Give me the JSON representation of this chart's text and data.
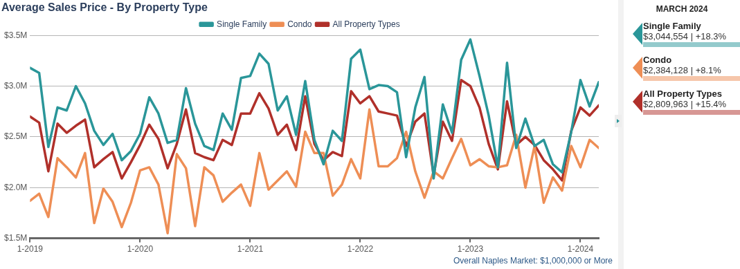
{
  "chart_data": {
    "type": "line",
    "title": "Average Sales Price - By Property Type",
    "x": [
      "2019-01",
      "2019-02",
      "2019-03",
      "2019-04",
      "2019-05",
      "2019-06",
      "2019-07",
      "2019-08",
      "2019-09",
      "2019-10",
      "2019-11",
      "2019-12",
      "2020-01",
      "2020-02",
      "2020-03",
      "2020-04",
      "2020-05",
      "2020-06",
      "2020-07",
      "2020-08",
      "2020-09",
      "2020-10",
      "2020-11",
      "2020-12",
      "2021-01",
      "2021-02",
      "2021-03",
      "2021-04",
      "2021-05",
      "2021-06",
      "2021-07",
      "2021-08",
      "2021-09",
      "2021-10",
      "2021-11",
      "2021-12",
      "2022-01",
      "2022-02",
      "2022-03",
      "2022-04",
      "2022-05",
      "2022-06",
      "2022-07",
      "2022-08",
      "2022-09",
      "2022-10",
      "2022-11",
      "2022-12",
      "2023-01",
      "2023-02",
      "2023-03",
      "2023-04",
      "2023-05",
      "2023-06",
      "2023-07",
      "2023-08",
      "2023-09",
      "2023-10",
      "2023-11",
      "2023-12",
      "2024-01",
      "2024-02",
      "2024-03"
    ],
    "series": [
      {
        "name": "Single Family",
        "color": "#2a9699",
        "values": [
          3.18,
          3.13,
          2.4,
          2.79,
          2.76,
          3.0,
          2.83,
          2.56,
          2.42,
          2.53,
          2.27,
          2.36,
          2.53,
          2.89,
          2.73,
          2.44,
          2.47,
          2.98,
          2.63,
          2.41,
          2.37,
          2.73,
          2.57,
          3.08,
          3.1,
          3.32,
          3.22,
          2.76,
          2.9,
          2.52,
          3.05,
          2.47,
          2.23,
          2.56,
          2.46,
          3.27,
          3.36,
          2.97,
          3.01,
          3.0,
          2.94,
          2.3,
          2.79,
          3.09,
          2.09,
          2.82,
          2.54,
          3.26,
          3.46,
          3.1,
          2.71,
          2.2,
          3.23,
          2.39,
          2.68,
          2.41,
          2.47,
          2.23,
          2.15,
          2.55,
          3.06,
          2.8,
          3.04
        ]
      },
      {
        "name": "Condo",
        "color": "#ee8e55",
        "values": [
          1.87,
          1.94,
          1.71,
          2.29,
          2.2,
          2.1,
          2.34,
          1.65,
          1.99,
          1.86,
          1.61,
          1.85,
          2.17,
          2.2,
          2.03,
          1.55,
          2.33,
          2.19,
          1.62,
          2.2,
          2.12,
          1.86,
          1.95,
          2.03,
          1.82,
          2.34,
          1.98,
          2.07,
          2.16,
          2.01,
          2.55,
          2.34,
          2.34,
          1.92,
          2.03,
          2.28,
          2.09,
          2.77,
          2.21,
          2.21,
          2.29,
          2.55,
          2.16,
          1.9,
          2.16,
          2.09,
          2.29,
          2.48,
          2.22,
          2.28,
          2.21,
          2.2,
          2.22,
          2.52,
          2.0,
          2.41,
          1.85,
          2.1,
          1.97,
          2.41,
          2.2,
          2.47,
          2.39
        ]
      },
      {
        "name": "All Property Types",
        "color": "#b0302a",
        "values": [
          2.7,
          2.64,
          2.16,
          2.63,
          2.54,
          2.61,
          2.67,
          2.2,
          2.28,
          2.35,
          2.09,
          2.25,
          2.42,
          2.62,
          2.48,
          2.19,
          2.43,
          2.77,
          2.34,
          2.3,
          2.27,
          2.47,
          2.42,
          2.73,
          2.73,
          2.93,
          2.78,
          2.52,
          2.62,
          2.37,
          2.9,
          2.43,
          2.27,
          2.35,
          2.31,
          2.95,
          2.83,
          2.9,
          2.75,
          2.73,
          2.71,
          2.41,
          2.65,
          2.73,
          2.12,
          2.65,
          2.46,
          3.06,
          3.0,
          2.79,
          2.43,
          2.18,
          2.85,
          2.42,
          2.5,
          2.42,
          2.27,
          2.18,
          2.07,
          2.56,
          2.79,
          2.71,
          2.81
        ]
      }
    ],
    "xlim": [
      "2019-01",
      "2024-03"
    ],
    "xticks": [
      {
        "value": "2019-01",
        "label": "1-2019"
      },
      {
        "value": "2020-01",
        "label": "1-2020"
      },
      {
        "value": "2021-01",
        "label": "1-2021"
      },
      {
        "value": "2022-01",
        "label": "1-2022"
      },
      {
        "value": "2023-01",
        "label": "1-2023"
      },
      {
        "value": "2024-01",
        "label": "1-2024"
      }
    ],
    "ylim": [
      1.5,
      3.5
    ],
    "yticks": [
      {
        "value": 1.5,
        "label": "$1.5M"
      },
      {
        "value": 2.0,
        "label": "$2.0M"
      },
      {
        "value": 2.5,
        "label": "$2.5M"
      },
      {
        "value": 3.0,
        "label": "$3.0M"
      },
      {
        "value": 3.5,
        "label": "$3.5M"
      }
    ],
    "grid": "y",
    "legend": "top",
    "annotations": [
      "MARCH 2024",
      "$3,044,554 | +18.3%",
      "$2,384,128 | +8.1%",
      "$2,809,963 | +15.4%",
      "Overall Naples Market: $1,000,000 or More"
    ]
  }
}
